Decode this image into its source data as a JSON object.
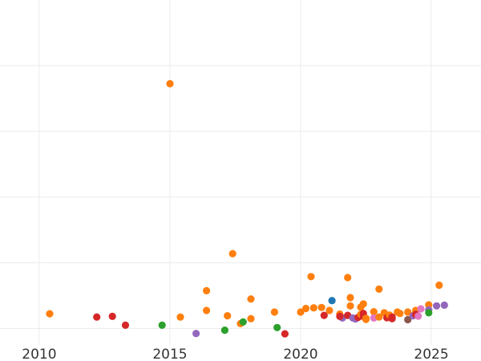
{
  "chart_data": {
    "type": "scatter",
    "title": "",
    "xlabel": "",
    "ylabel": "",
    "xlim": [
      2008.5,
      2026.9
    ],
    "ylim": [
      -5,
      100
    ],
    "xticks": [
      2010,
      2015,
      2020,
      2025
    ],
    "xtick_labels": [
      "2010",
      "2015",
      "2020",
      "2025"
    ],
    "yticks": [
      0,
      20,
      40,
      60,
      80
    ],
    "ytick_labels": [],
    "grid": true,
    "legend": "none",
    "palette": {
      "blue": "#1f77b4",
      "orange": "#ff7f0e",
      "green": "#2ca02c",
      "red": "#d62728",
      "purple": "#9467bd",
      "brown": "#8c564b",
      "pink": "#e377c2"
    },
    "points": [
      {
        "x": 2010.4,
        "y": 4.5,
        "c": "orange"
      },
      {
        "x": 2012.2,
        "y": 3.5,
        "c": "red"
      },
      {
        "x": 2012.8,
        "y": 3.7,
        "c": "red"
      },
      {
        "x": 2013.3,
        "y": 1.0,
        "c": "red"
      },
      {
        "x": 2014.7,
        "y": 1.0,
        "c": "green"
      },
      {
        "x": 2015.0,
        "y": 74.5,
        "c": "orange"
      },
      {
        "x": 2015.4,
        "y": 3.5,
        "c": "orange"
      },
      {
        "x": 2016.0,
        "y": -1.5,
        "c": "purple"
      },
      {
        "x": 2016.4,
        "y": 11.5,
        "c": "orange"
      },
      {
        "x": 2016.4,
        "y": 5.5,
        "c": "orange"
      },
      {
        "x": 2017.1,
        "y": -0.5,
        "c": "green"
      },
      {
        "x": 2017.2,
        "y": 3.9,
        "c": "orange"
      },
      {
        "x": 2017.4,
        "y": 22.8,
        "c": "orange"
      },
      {
        "x": 2017.7,
        "y": 1.5,
        "c": "orange"
      },
      {
        "x": 2017.8,
        "y": 2.0,
        "c": "green"
      },
      {
        "x": 2018.1,
        "y": 3.0,
        "c": "orange"
      },
      {
        "x": 2018.1,
        "y": 9.0,
        "c": "orange"
      },
      {
        "x": 2019.0,
        "y": 5.0,
        "c": "orange"
      },
      {
        "x": 2019.1,
        "y": 0.3,
        "c": "green"
      },
      {
        "x": 2019.4,
        "y": -1.6,
        "c": "red"
      },
      {
        "x": 2020.0,
        "y": 5.0,
        "c": "orange"
      },
      {
        "x": 2020.2,
        "y": 6.1,
        "c": "orange"
      },
      {
        "x": 2020.4,
        "y": 15.8,
        "c": "orange"
      },
      {
        "x": 2020.5,
        "y": 6.3,
        "c": "orange"
      },
      {
        "x": 2020.8,
        "y": 6.4,
        "c": "orange"
      },
      {
        "x": 2020.9,
        "y": 4.0,
        "c": "red"
      },
      {
        "x": 2021.1,
        "y": 5.5,
        "c": "orange"
      },
      {
        "x": 2021.2,
        "y": 8.5,
        "c": "blue"
      },
      {
        "x": 2021.5,
        "y": 4.4,
        "c": "orange"
      },
      {
        "x": 2021.6,
        "y": 3.2,
        "c": "purple"
      },
      {
        "x": 2021.5,
        "y": 3.7,
        "c": "red"
      },
      {
        "x": 2021.8,
        "y": 4.0,
        "c": "red"
      },
      {
        "x": 2021.8,
        "y": 15.5,
        "c": "orange"
      },
      {
        "x": 2021.9,
        "y": 9.4,
        "c": "orange"
      },
      {
        "x": 2021.9,
        "y": 6.9,
        "c": "orange"
      },
      {
        "x": 2022.0,
        "y": 3.2,
        "c": "purple"
      },
      {
        "x": 2022.1,
        "y": 2.9,
        "c": "purple"
      },
      {
        "x": 2022.2,
        "y": 3.4,
        "c": "red"
      },
      {
        "x": 2022.3,
        "y": 6.5,
        "c": "orange"
      },
      {
        "x": 2022.3,
        "y": 4.3,
        "c": "orange"
      },
      {
        "x": 2022.4,
        "y": 7.5,
        "c": "orange"
      },
      {
        "x": 2022.4,
        "y": 4.6,
        "c": "red"
      },
      {
        "x": 2022.4,
        "y": 3.7,
        "c": "red"
      },
      {
        "x": 2022.5,
        "y": 3.1,
        "c": "orange"
      },
      {
        "x": 2022.5,
        "y": 2.8,
        "c": "orange"
      },
      {
        "x": 2022.8,
        "y": 5.1,
        "c": "orange"
      },
      {
        "x": 2022.8,
        "y": 3.2,
        "c": "pink"
      },
      {
        "x": 2023.0,
        "y": 12.0,
        "c": "orange"
      },
      {
        "x": 2023.0,
        "y": 3.5,
        "c": "orange"
      },
      {
        "x": 2023.2,
        "y": 4.8,
        "c": "orange"
      },
      {
        "x": 2023.3,
        "y": 3.3,
        "c": "red"
      },
      {
        "x": 2023.4,
        "y": 4.1,
        "c": "orange"
      },
      {
        "x": 2023.5,
        "y": 3.5,
        "c": "red"
      },
      {
        "x": 2023.5,
        "y": 3.0,
        "c": "red"
      },
      {
        "x": 2023.7,
        "y": 5.0,
        "c": "orange"
      },
      {
        "x": 2023.8,
        "y": 4.6,
        "c": "orange"
      },
      {
        "x": 2024.1,
        "y": 2.7,
        "c": "brown"
      },
      {
        "x": 2024.1,
        "y": 5.0,
        "c": "orange"
      },
      {
        "x": 2024.3,
        "y": 3.9,
        "c": "purple"
      },
      {
        "x": 2024.4,
        "y": 5.5,
        "c": "orange"
      },
      {
        "x": 2024.4,
        "y": 4.3,
        "c": "red"
      },
      {
        "x": 2024.5,
        "y": 3.8,
        "c": "pink"
      },
      {
        "x": 2024.6,
        "y": 6.0,
        "c": "pink"
      },
      {
        "x": 2024.9,
        "y": 7.2,
        "c": "orange"
      },
      {
        "x": 2024.9,
        "y": 5.7,
        "c": "purple"
      },
      {
        "x": 2024.9,
        "y": 4.8,
        "c": "green"
      },
      {
        "x": 2025.2,
        "y": 6.9,
        "c": "purple"
      },
      {
        "x": 2025.3,
        "y": 13.2,
        "c": "orange"
      },
      {
        "x": 2025.5,
        "y": 7.1,
        "c": "purple"
      }
    ]
  }
}
